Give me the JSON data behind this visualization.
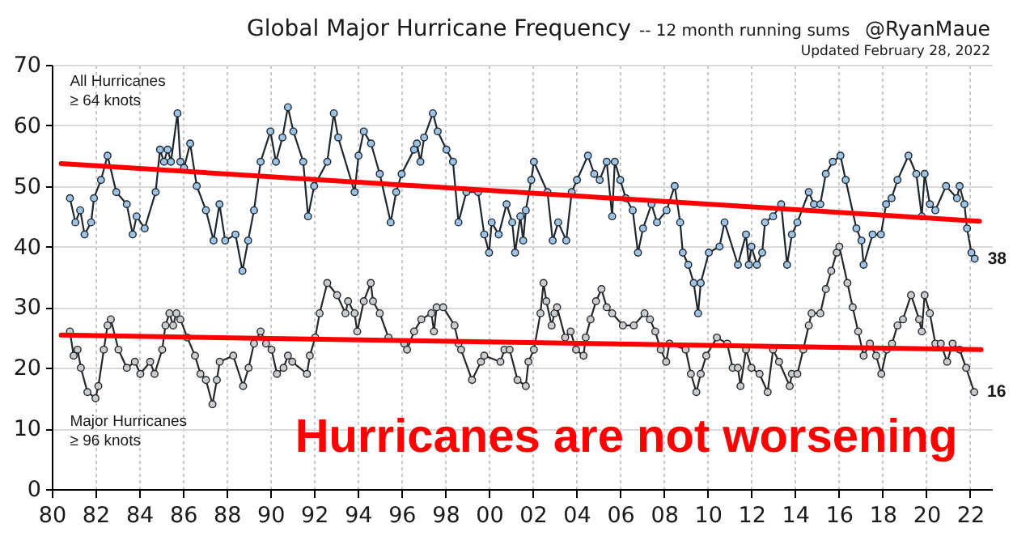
{
  "chart_data": {
    "type": "line",
    "title": "Global Major Hurricane Frequency",
    "subtitle": "-- 12 month running sums",
    "xlim": [
      1980,
      2023
    ],
    "xticks": [
      {
        "value": 1980,
        "label": "80"
      },
      {
        "value": 1982,
        "label": "82"
      },
      {
        "value": 1984,
        "label": "84"
      },
      {
        "value": 1986,
        "label": "86"
      },
      {
        "value": 1988,
        "label": "88"
      },
      {
        "value": 1990,
        "label": "90"
      },
      {
        "value": 1992,
        "label": "92"
      },
      {
        "value": 1994,
        "label": "94"
      },
      {
        "value": 1996,
        "label": "96"
      },
      {
        "value": 1998,
        "label": "98"
      },
      {
        "value": 2000,
        "label": "00"
      },
      {
        "value": 2002,
        "label": "02"
      },
      {
        "value": 2004,
        "label": "04"
      },
      {
        "value": 2006,
        "label": "06"
      },
      {
        "value": 2008,
        "label": "08"
      },
      {
        "value": 2010,
        "label": "10"
      },
      {
        "value": 2012,
        "label": "12"
      },
      {
        "value": 2014,
        "label": "14"
      },
      {
        "value": 2016,
        "label": "16"
      },
      {
        "value": 2018,
        "label": "18"
      },
      {
        "value": 2020,
        "label": "20"
      },
      {
        "value": 2022,
        "label": "22"
      }
    ],
    "ylim": [
      0,
      70
    ],
    "yticks": [
      0,
      10,
      20,
      30,
      40,
      50,
      60,
      70
    ],
    "grid": true,
    "marker": "circle",
    "line_style": "solid",
    "series": [
      {
        "name": "All Hurricanes\n≥ 64 knots",
        "color": "#9dc3e6",
        "x": [
          1980.83,
          1981.08,
          1981.3,
          1981.5,
          1981.8,
          1981.93,
          1982.25,
          1982.55,
          1982.95,
          1983.43,
          1983.7,
          1983.88,
          1984.25,
          1984.75,
          1984.95,
          1985.13,
          1985.3,
          1985.45,
          1985.75,
          1985.88,
          1986.05,
          1986.33,
          1986.63,
          1987.05,
          1987.4,
          1987.67,
          1987.93,
          1988.4,
          1988.72,
          1988.98,
          1989.25,
          1989.55,
          1990.0,
          1990.25,
          1990.55,
          1990.8,
          1991.05,
          1991.5,
          1991.72,
          1992.0,
          1992.6,
          1992.9,
          1993.1,
          1993.85,
          1994.03,
          1994.27,
          1994.6,
          1995.0,
          1995.5,
          1995.75,
          1996.0,
          1996.57,
          1996.7,
          1996.86,
          1997.03,
          1997.43,
          1997.65,
          1998.05,
          1998.35,
          1998.6,
          1998.96,
          1999.5,
          1999.78,
          2000.0,
          2000.12,
          2000.44,
          2000.8,
          2001.06,
          2001.19,
          2001.43,
          2001.56,
          2001.68,
          2001.93,
          2002.05,
          2002.67,
          2002.91,
          2003.16,
          2003.53,
          2003.78,
          2004.02,
          2004.52,
          2004.81,
          2005.06,
          2005.38,
          2005.63,
          2005.75,
          2006.0,
          2006.25,
          2006.57,
          2006.81,
          2007.04,
          2007.43,
          2007.68,
          2008.12,
          2008.49,
          2008.74,
          2008.86,
          2009.11,
          2009.36,
          2009.56,
          2009.68,
          2010.05,
          2010.54,
          2010.77,
          2011.38,
          2011.75,
          2011.88,
          2012.0,
          2012.25,
          2012.49,
          2012.62,
          2012.99,
          2013.36,
          2013.63,
          2013.85,
          2014.1,
          2014.62,
          2014.86,
          2015.15,
          2015.4,
          2015.72,
          2016.07,
          2016.31,
          2016.8,
          2017.03,
          2017.13,
          2017.54,
          2017.92,
          2018.16,
          2018.41,
          2018.68,
          2019.18,
          2019.54,
          2019.79,
          2019.92,
          2020.16,
          2020.41,
          2020.9,
          2021.4,
          2021.52,
          2021.74,
          2021.86,
          2022.06,
          2022.21
        ],
        "values": [
          48,
          44,
          46,
          42,
          44,
          48,
          51,
          55,
          49,
          47,
          42,
          45,
          43,
          49,
          56,
          54,
          56,
          54,
          62,
          54,
          53,
          57,
          50,
          46,
          41,
          47,
          41,
          42,
          36,
          41,
          46,
          54,
          59,
          54,
          58,
          63,
          59,
          54,
          45,
          50,
          54,
          62,
          58,
          49,
          55,
          59,
          57,
          52,
          44,
          49,
          52,
          56,
          57,
          54,
          58,
          62,
          59,
          56,
          54,
          44,
          49,
          49,
          42,
          39,
          44,
          42,
          47,
          44,
          39,
          45,
          41,
          46,
          51,
          54,
          49,
          41,
          44,
          41,
          49,
          51,
          55,
          52,
          51,
          54,
          45,
          54,
          51,
          48,
          46,
          39,
          43,
          47,
          44,
          46,
          50,
          44,
          39,
          37,
          34,
          29,
          34,
          39,
          40,
          44,
          37,
          42,
          37,
          40,
          37,
          39,
          44,
          45,
          47,
          37,
          42,
          44,
          49,
          47,
          47,
          52,
          54,
          55,
          51,
          43,
          41,
          37,
          42,
          42,
          47,
          48,
          51,
          55,
          52,
          45,
          52,
          47,
          46,
          50,
          48,
          50,
          47,
          43,
          39,
          38
        ]
      },
      {
        "name": "Major Hurricanes\n≥ 96 knots",
        "color": "#c9ccd1",
        "x": [
          1980.83,
          1981.0,
          1981.18,
          1981.33,
          1981.63,
          1982.0,
          1982.13,
          1982.38,
          1982.55,
          1982.7,
          1983.05,
          1983.43,
          1983.8,
          1984.05,
          1984.5,
          1984.7,
          1985.05,
          1985.2,
          1985.38,
          1985.55,
          1985.7,
          1985.88,
          1986.2,
          1986.55,
          1986.8,
          1987.05,
          1987.35,
          1987.55,
          1987.68,
          1988.3,
          1988.75,
          1989.0,
          1989.25,
          1989.55,
          1989.8,
          1990.05,
          1990.3,
          1990.6,
          1990.8,
          1991.0,
          1991.67,
          1991.8,
          1992.05,
          1992.25,
          1992.6,
          1993.05,
          1993.43,
          1993.55,
          1993.85,
          1993.97,
          1994.27,
          1994.59,
          1994.69,
          1995.0,
          1995.4,
          1996.12,
          1996.25,
          1996.57,
          1996.9,
          1997.36,
          1997.48,
          1997.6,
          1997.9,
          1998.42,
          1998.6,
          1998.72,
          1999.22,
          1999.63,
          1999.78,
          2000.52,
          2000.7,
          2000.94,
          2001.3,
          2001.68,
          2001.8,
          2002.05,
          2002.35,
          2002.49,
          2002.62,
          2002.86,
          2002.99,
          2003.11,
          2003.48,
          2003.73,
          2003.98,
          2004.32,
          2004.42,
          2004.64,
          2004.89,
          2005.14,
          2005.38,
          2005.63,
          2006.12,
          2006.62,
          2007.11,
          2007.36,
          2007.6,
          2007.85,
          2008.1,
          2008.25,
          2008.99,
          2009.23,
          2009.48,
          2009.68,
          2009.93,
          2010.42,
          2010.89,
          2011.14,
          2011.38,
          2011.5,
          2011.75,
          2012.0,
          2012.37,
          2012.74,
          2012.99,
          2013.26,
          2013.75,
          2013.85,
          2014.1,
          2014.37,
          2014.62,
          2014.75,
          2015.15,
          2015.4,
          2015.65,
          2015.9,
          2016.02,
          2016.39,
          2016.63,
          2016.88,
          2017.13,
          2017.42,
          2017.7,
          2017.94,
          2018.19,
          2018.43,
          2018.68,
          2018.93,
          2019.3,
          2019.67,
          2019.79,
          2019.92,
          2020.16,
          2020.41,
          2020.66,
          2020.95,
          2021.2,
          2021.52,
          2021.82,
          2022.19
        ],
        "values": [
          26,
          22,
          23,
          20,
          16,
          15,
          17,
          23,
          27,
          28,
          23,
          20,
          21,
          19,
          21,
          19,
          23,
          27,
          29,
          27,
          29,
          28,
          25,
          22,
          19,
          18,
          14,
          18,
          21,
          22,
          17,
          20,
          24,
          26,
          24,
          23,
          19,
          20,
          22,
          21,
          19,
          22,
          25,
          29,
          34,
          32,
          29,
          31,
          29,
          26,
          31,
          34,
          31,
          29,
          25,
          24,
          23,
          26,
          28,
          29,
          26,
          30,
          30,
          27,
          24,
          23,
          18,
          21,
          22,
          21,
          23,
          23,
          18,
          17,
          21,
          23,
          29,
          34,
          31,
          27,
          29,
          30,
          25,
          26,
          23,
          22,
          25,
          28,
          31,
          33,
          30,
          29,
          27,
          27,
          29,
          28,
          26,
          23,
          21,
          24,
          23,
          19,
          16,
          19,
          22,
          25,
          24,
          20,
          20,
          17,
          23,
          20,
          19,
          16,
          23,
          21,
          17,
          19,
          19,
          23,
          27,
          29,
          29,
          33,
          36,
          39,
          40,
          34,
          30,
          26,
          22,
          24,
          22,
          19,
          23,
          24,
          27,
          28,
          32,
          28,
          26,
          32,
          29,
          24,
          24,
          21,
          24,
          23,
          20,
          16
        ]
      },
      {
        "type": "line",
        "color": "#ff0000",
        "marker": "none",
        "x": [
          1980.43,
          2022.43
        ],
        "values": [
          53.7,
          44.2
        ]
      },
      {
        "type": "line",
        "color": "#ff0000",
        "marker": "none",
        "x": [
          1980.43,
          2022.5
        ],
        "values": [
          25.4,
          23.0
        ]
      }
    ],
    "annotations": [
      "@RyanMaue",
      "Updated February 28, 2022",
      "Hurricanes are not worsening",
      {
        "text": "38",
        "x": 2022.21,
        "y": 38
      },
      {
        "text": "16",
        "x": 2022.19,
        "y": 16
      }
    ]
  }
}
